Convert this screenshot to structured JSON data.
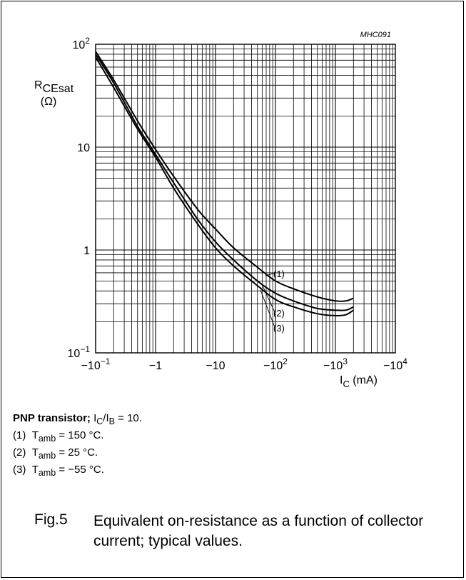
{
  "chart_data": {
    "type": "line",
    "code": "MHC091",
    "xscale": "log",
    "yscale": "log",
    "xlim": [
      0.1,
      10000
    ],
    "ylim": [
      0.1,
      100
    ],
    "grid": true,
    "xticks": [
      {
        "v": 0.1,
        "base": "−10",
        "exp": "−1"
      },
      {
        "v": 1,
        "base": "−1",
        "exp": ""
      },
      {
        "v": 10,
        "base": "−10",
        "exp": ""
      },
      {
        "v": 100,
        "base": "−10",
        "exp": "2"
      },
      {
        "v": 1000,
        "base": "−10",
        "exp": "3"
      },
      {
        "v": 10000,
        "base": "−10",
        "exp": "4"
      }
    ],
    "yticks": [
      {
        "v": 100,
        "base": "10",
        "exp": "2"
      },
      {
        "v": 10,
        "base": "10",
        "exp": ""
      },
      {
        "v": 1,
        "base": "1",
        "exp": ""
      },
      {
        "v": 0.1,
        "base": "10",
        "exp": "−1"
      }
    ],
    "ylabel": {
      "main": "R",
      "sub": "CEsat",
      "unit": "(Ω)"
    },
    "xlabel": {
      "main": "I",
      "sub": "C",
      "unit": " (mA)"
    },
    "series": [
      {
        "name": "(1)",
        "x": [
          0.1,
          0.2,
          0.5,
          1,
          2,
          5,
          10,
          20,
          50,
          100,
          200,
          500,
          1000,
          1500,
          2000
        ],
        "y": [
          85,
          45,
          18,
          9.5,
          5.2,
          2.5,
          1.6,
          1.05,
          0.68,
          0.5,
          0.42,
          0.35,
          0.32,
          0.32,
          0.34
        ]
      },
      {
        "name": "(2)",
        "x": [
          0.1,
          0.2,
          0.5,
          1,
          2,
          5,
          10,
          20,
          50,
          100,
          200,
          500,
          1000,
          1500,
          2000
        ],
        "y": [
          80,
          42,
          16,
          8.5,
          4.5,
          2.0,
          1.2,
          0.8,
          0.5,
          0.38,
          0.32,
          0.27,
          0.26,
          0.26,
          0.28
        ]
      },
      {
        "name": "(3)",
        "x": [
          0.1,
          0.2,
          0.5,
          1,
          2,
          5,
          10,
          20,
          50,
          100,
          200,
          500,
          1000,
          1500,
          2000
        ],
        "y": [
          75,
          38,
          15,
          8,
          4,
          1.8,
          1.05,
          0.7,
          0.45,
          0.33,
          0.28,
          0.24,
          0.23,
          0.235,
          0.26
        ]
      }
    ]
  },
  "notes": {
    "line0": {
      "bold": "PNP transistor;",
      "pre": " I",
      "s1": "C",
      "mid": "/I",
      "s2": "B",
      "post": " = 10."
    },
    "items": [
      {
        "num": "(1)",
        "pre": "T",
        "sub": "amb",
        "post": " = 150 °C."
      },
      {
        "num": "(2)",
        "pre": "T",
        "sub": "amb",
        "post": " = 25 °C."
      },
      {
        "num": "(3)",
        "pre": "T",
        "sub": "amb",
        "post": " = −55 °C."
      }
    ]
  },
  "caption": {
    "number": "Fig.5",
    "text": "Equivalent on-resistance as a function of collector current; typical values."
  }
}
